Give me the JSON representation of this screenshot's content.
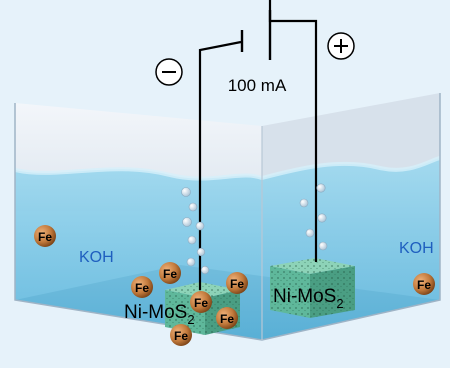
{
  "current_label": "100 mA",
  "negative_terminal": "−",
  "positive_terminal": "+",
  "electrolyte_left": "KOH",
  "electrolyte_right": "KOH",
  "electrode_left": {
    "base": "Ni-MoS",
    "sub": "2"
  },
  "electrode_right": {
    "base": "Ni-MoS",
    "sub": "2"
  },
  "iron_label": "Fe",
  "colors": {
    "background": "#e6f2fa",
    "electrolyte": "#7ec8e6",
    "electrolyte_text": "#1f5fbf",
    "electrode": "#5fb89b",
    "iron_particle": "#c27a3c",
    "wire": "#000000"
  }
}
